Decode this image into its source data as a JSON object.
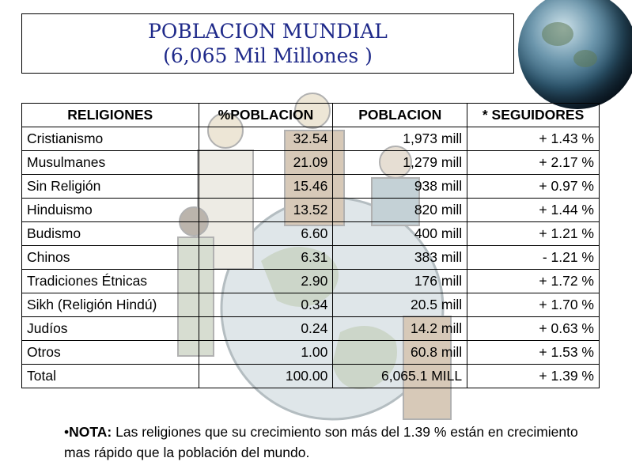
{
  "title": {
    "line1": "POBLACION MUNDIAL",
    "line2": "(6,065 Mil Millones )"
  },
  "table": {
    "headers": [
      "RELIGIONES",
      "%POBLACION",
      "POBLACION",
      "* SEGUIDORES"
    ],
    "rows": [
      [
        "Cristianismo",
        "32.54",
        "1,973 mill",
        "+ 1.43 %"
      ],
      [
        "Musulmanes",
        "21.09",
        "1,279 mill",
        "+ 2.17 %"
      ],
      [
        "Sin Religión",
        "15.46",
        "938 mill",
        "+ 0.97 %"
      ],
      [
        "Hinduismo",
        "13.52",
        "820 mill",
        "+ 1.44 %"
      ],
      [
        "Budismo",
        "6.60",
        "400 mill",
        "+ 1.21 %"
      ],
      [
        "Chinos",
        "6.31",
        "383 mill",
        "- 1.21 %"
      ],
      [
        "Tradiciones Étnicas",
        "2.90",
        "176 mill",
        "+ 1.72 %"
      ],
      [
        "Sikh (Religión Hindú)",
        "0.34",
        "20.5 mill",
        "+ 1.70 %"
      ],
      [
        "Judíos",
        "0.24",
        "14.2 mill",
        "+ 0.63 %"
      ],
      [
        "Otros",
        "1.00",
        "60.8 mill",
        "+ 1.53 %"
      ],
      [
        "Total",
        "100.00",
        "6,065.1 MILL",
        "+ 1.39 %"
      ]
    ]
  },
  "note": {
    "bullet": "•",
    "label": "NOTA:",
    "text": " Las religiones que su crecimiento son más del 1.39 % están en crecimiento mas rápido que la población del mundo."
  },
  "colors": {
    "title": "#1f2a8a",
    "globe": "#2f5a73"
  }
}
